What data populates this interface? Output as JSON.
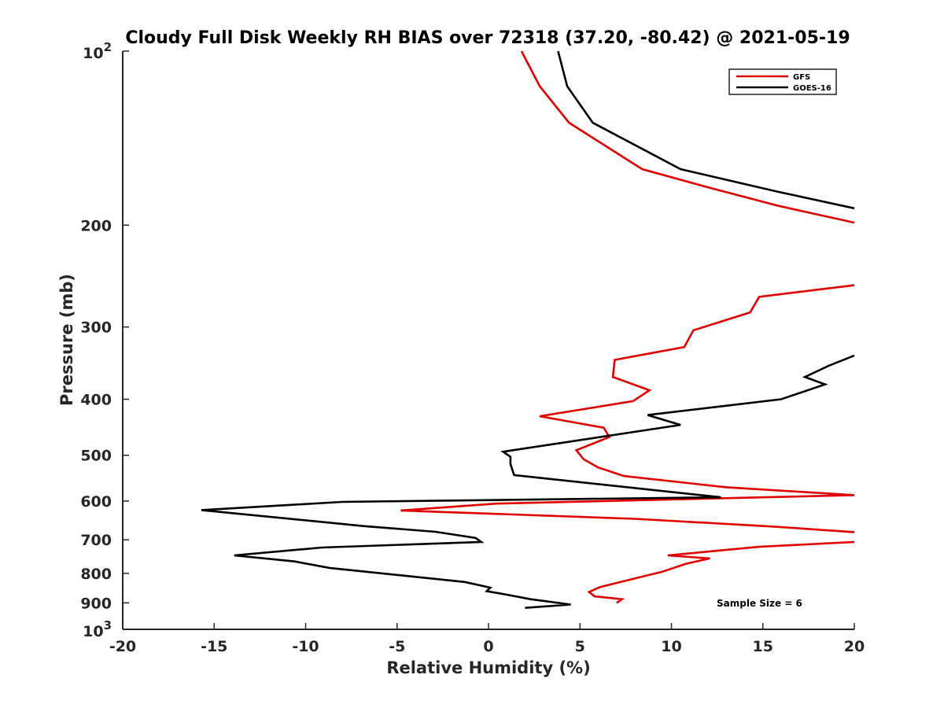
{
  "chart_data": {
    "type": "line",
    "title": "Cloudy Full Disk Weekly RH BIAS over 72318 (37.20, -80.42) @ 2021-05-19",
    "xlabel": "Relative Humidity (%)",
    "ylabel": "Pressure (mb)",
    "xlim": [
      -20,
      20
    ],
    "ylim": [
      100,
      1000
    ],
    "yscale": "log",
    "y_reversed": true,
    "xticks": [
      -20,
      -15,
      -10,
      -5,
      0,
      5,
      10,
      15,
      20
    ],
    "xtick_labels": [
      "-20",
      "-15",
      "-10",
      "-5",
      "0",
      "5",
      "10",
      "15",
      "20"
    ],
    "yticks": [
      200,
      300,
      400,
      500,
      600,
      700,
      800,
      900
    ],
    "ytick_labels": [
      "200",
      "300",
      "400",
      "500",
      "600",
      "700",
      "800",
      "900"
    ],
    "ytick_top": {
      "base": "10",
      "exp": "2",
      "value": 100
    },
    "ytick_bottom": {
      "base": "10",
      "exp": "3",
      "value": 1000
    },
    "legend_position": "top-right",
    "annotation": "Sample Size = 6",
    "series": [
      {
        "name": "GFS",
        "color": "#e00000",
        "points": [
          [
            1.8,
            100
          ],
          [
            2.8,
            115
          ],
          [
            4.4,
            133
          ],
          [
            8.4,
            160
          ],
          [
            12,
            172
          ],
          [
            15.8,
            185
          ],
          [
            20,
            198
          ],
          null,
          [
            20,
            254
          ],
          [
            14.8,
            266
          ],
          [
            14.3,
            283
          ],
          [
            11.2,
            304
          ],
          [
            10.7,
            325
          ],
          [
            6.9,
            342
          ],
          [
            6.8,
            366
          ],
          [
            8.8,
            386
          ],
          [
            7.9,
            403
          ],
          [
            2.8,
            428
          ],
          [
            6.3,
            448
          ],
          [
            6.6,
            465
          ],
          [
            4.8,
            490
          ],
          [
            5.2,
            508
          ],
          [
            6.0,
            525
          ],
          [
            7.4,
            543
          ],
          [
            13,
            568
          ],
          [
            20,
            586
          ],
          [
            0.5,
            606
          ],
          [
            -4.8,
            623
          ],
          [
            8.0,
            644
          ],
          [
            15.5,
            664
          ],
          [
            20,
            679
          ],
          null,
          [
            20,
            706
          ],
          [
            14.8,
            720
          ],
          [
            9.8,
            745
          ],
          [
            12.1,
            754
          ],
          [
            10.8,
            770
          ],
          [
            9.5,
            795
          ],
          [
            7.9,
            818
          ],
          [
            6.1,
            845
          ],
          [
            5.5,
            862
          ],
          [
            5.8,
            877
          ],
          [
            7.3,
            887
          ],
          [
            7.0,
            900
          ]
        ]
      },
      {
        "name": "GOES-16",
        "color": "#000000",
        "points": [
          [
            3.8,
            100
          ],
          [
            4.3,
            115
          ],
          [
            5.7,
            133
          ],
          [
            10.5,
            160
          ],
          [
            15.8,
            175
          ],
          [
            20,
            187
          ],
          null,
          [
            20,
            336
          ],
          [
            18.6,
            350
          ],
          [
            17.3,
            366
          ],
          [
            18.4,
            377
          ],
          [
            16.0,
            400
          ],
          [
            8.7,
            426
          ],
          [
            10.5,
            443
          ],
          [
            0.8,
            493
          ],
          [
            1.2,
            503
          ],
          [
            1.2,
            518
          ],
          [
            1.4,
            541
          ],
          [
            12.7,
            591
          ],
          [
            -8.0,
            602
          ],
          [
            -15.7,
            622
          ],
          [
            -6.8,
            663
          ],
          [
            -2.9,
            678
          ],
          [
            -0.7,
            695
          ],
          [
            -0.4,
            706
          ],
          [
            -9.1,
            722
          ],
          [
            -13.9,
            745
          ],
          [
            -10.6,
            763
          ],
          [
            -8.7,
            783
          ],
          [
            -1.3,
            828
          ],
          [
            0.1,
            847
          ],
          [
            -0.1,
            859
          ],
          [
            0.9,
            870
          ],
          [
            2.3,
            887
          ],
          [
            4.5,
            906
          ],
          [
            2.0,
            918
          ]
        ]
      }
    ]
  },
  "colors": {
    "gfs": "#e00000",
    "goes": "#000000",
    "axis": "#262626"
  }
}
